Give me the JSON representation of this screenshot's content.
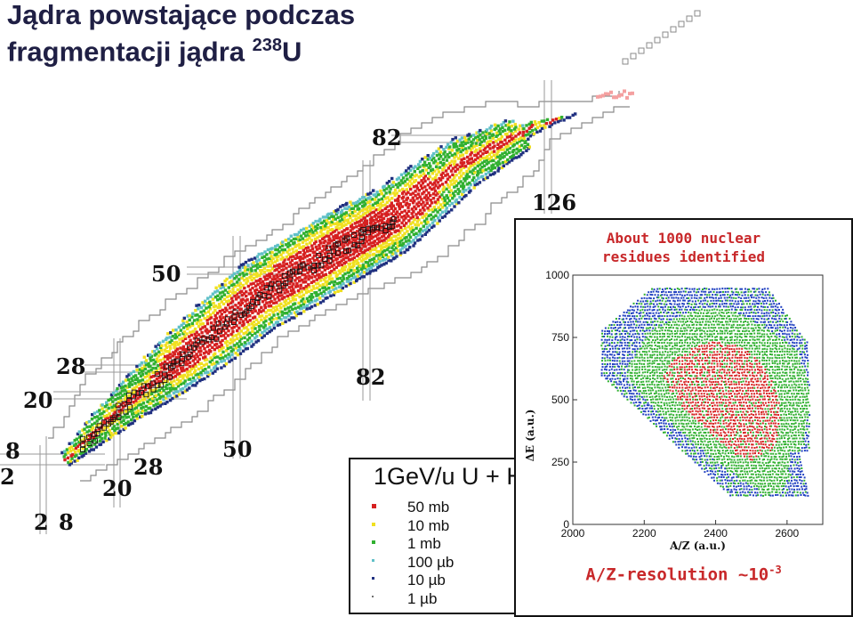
{
  "title": {
    "line1": "Jądra powstające podczas",
    "line2_prefix": "fragmentacji jądra ",
    "mass_number": "238",
    "element": "U"
  },
  "chart_data": [
    {
      "type": "heatmap",
      "title": "",
      "xlabel": "",
      "ylabel": "",
      "magic_numbers": {
        "neutron_lines": [
          "2",
          "8",
          "20",
          "28",
          "50",
          "82",
          "126"
        ],
        "proton_lines": [
          "2",
          "8",
          "20",
          "28",
          "50",
          "82"
        ]
      },
      "colors": {
        "50 mb": "#d62020",
        "10 mb": "#f0e020",
        "1 mb": "#30b030",
        "100 µb": "#60c0c8",
        "10 µb": "#203080",
        "1 µb": "#707070"
      }
    },
    {
      "type": "scatter",
      "xlabel": "A/Z (a.u.)",
      "ylabel": "ΔE (a.u.)",
      "xlim": [
        2000,
        2700
      ],
      "ylim": [
        0,
        1000
      ],
      "x_ticks": [
        "2000",
        "2200",
        "2400",
        "2600"
      ],
      "y_ticks": [
        "0",
        "250",
        "500",
        "750",
        "1000"
      ],
      "note": "About 1000 nuclear residues identified",
      "colors": {
        "high": "#d62020",
        "mid": "#30b030",
        "low": "#2040c0"
      }
    }
  ],
  "legend": {
    "title": "1GeV/u U + H",
    "items": [
      {
        "label": "50 mb",
        "color": "#d62020"
      },
      {
        "label": "10 mb",
        "color": "#f0e020"
      },
      {
        "label": "1 mb",
        "color": "#30b030"
      },
      {
        "label": "100 µb",
        "color": "#60c0c8"
      },
      {
        "label": "10 µb",
        "color": "#203080"
      },
      {
        "label": "1 µb",
        "color": "#707070"
      }
    ]
  },
  "inset": {
    "note_line1": "About 1000 nuclear",
    "note_line2": "residues identified",
    "resolution_prefix": "A/Z-resolution ~10",
    "resolution_exp": "-3"
  }
}
